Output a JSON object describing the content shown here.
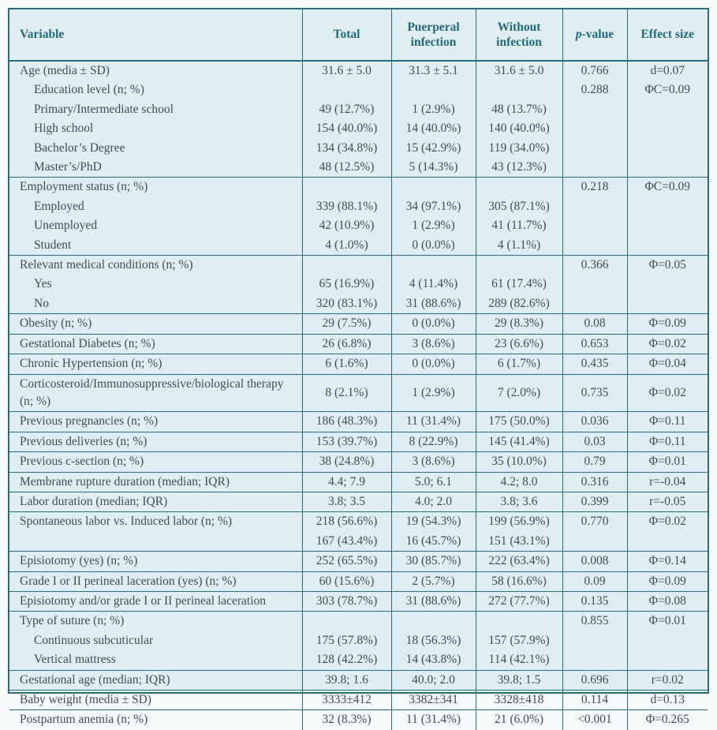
{
  "colors": {
    "frame_border": "#276e7e",
    "header_text": "#1f6b7c",
    "body_text": "#3f4e55",
    "table_background": "#e1eef1",
    "page_background": "#f7fafa"
  },
  "table": {
    "columns": {
      "variable": "Variable",
      "total": "Total",
      "puerperal": "Puerperal infection",
      "without": "Without infection",
      "p_value_italic": "p",
      "p_value_rest": "-value",
      "effect": "Effect size"
    },
    "rows": [
      {
        "label": "Age (media ± SD)",
        "indent": 0,
        "group_start": false,
        "total": "31.6 ± 5.0",
        "puerperal": "31.3 ± 5.1",
        "without": "31.6 ± 5.0",
        "p": "0.766",
        "effect": "d=0.07"
      },
      {
        "label": "Education level (n; %)",
        "indent": 1,
        "group_start": false,
        "total": "",
        "puerperal": "",
        "without": "",
        "p": "0.288",
        "effect": "ΦC=0.09"
      },
      {
        "label": "Primary/Intermediate school",
        "indent": 1,
        "group_start": false,
        "total": "49 (12.7%)",
        "puerperal": "1 (2.9%)",
        "without": "48 (13.7%)",
        "p": "",
        "effect": ""
      },
      {
        "label": "High school",
        "indent": 1,
        "group_start": false,
        "total": "154 (40.0%)",
        "puerperal": "14 (40.0%)",
        "without": "140 (40.0%)",
        "p": "",
        "effect": ""
      },
      {
        "label": "Bachelor’s Degree",
        "indent": 1,
        "group_start": false,
        "total": "134 (34.8%)",
        "puerperal": "15 (42.9%)",
        "without": "119 (34.0%)",
        "p": "",
        "effect": ""
      },
      {
        "label": "Master’s/PhD",
        "indent": 1,
        "group_start": false,
        "total": "48 (12.5%)",
        "puerperal": "5 (14.3%)",
        "without": "43 (12.3%)",
        "p": "",
        "effect": ""
      },
      {
        "label": "Employment status (n; %)",
        "indent": 0,
        "group_start": true,
        "total": "",
        "puerperal": "",
        "without": "",
        "p": "0.218",
        "effect": "ΦC=0.09"
      },
      {
        "label": "Employed",
        "indent": 1,
        "group_start": false,
        "total": "339 (88.1%)",
        "puerperal": "34 (97.1%)",
        "without": "305 (87.1%)",
        "p": "",
        "effect": ""
      },
      {
        "label": "Unemployed",
        "indent": 1,
        "group_start": false,
        "total": "42 (10.9%)",
        "puerperal": "1 (2.9%)",
        "without": "41 (11.7%)",
        "p": "",
        "effect": ""
      },
      {
        "label": "Student",
        "indent": 1,
        "group_start": false,
        "total": "4 (1.0%)",
        "puerperal": "0 (0.0%)",
        "without": "4 (1.1%)",
        "p": "",
        "effect": ""
      },
      {
        "label": "Relevant medical conditions (n; %)",
        "indent": 0,
        "group_start": true,
        "total": "",
        "puerperal": "",
        "without": "",
        "p": "0.366",
        "effect": "Φ=0.05"
      },
      {
        "label": "Yes",
        "indent": 1,
        "group_start": false,
        "total": "65 (16.9%)",
        "puerperal": "4 (11.4%)",
        "without": "61 (17.4%)",
        "p": "",
        "effect": ""
      },
      {
        "label": "No",
        "indent": 1,
        "group_start": false,
        "total": "320 (83.1%)",
        "puerperal": "31 (88.6%)",
        "without": "289 (82.6%)",
        "p": "",
        "effect": ""
      },
      {
        "label": "Obesity (n; %)",
        "indent": 0,
        "group_start": true,
        "total": "29 (7.5%)",
        "puerperal": "0 (0.0%)",
        "without": "29 (8.3%)",
        "p": "0.08",
        "effect": "Φ=0.09"
      },
      {
        "label": "Gestational Diabetes (n; %)",
        "indent": 0,
        "group_start": true,
        "total": "26 (6.8%)",
        "puerperal": "3 (8.6%)",
        "without": "23 (6.6%)",
        "p": "0.653",
        "effect": "Φ=0.02"
      },
      {
        "label": "Chronic Hypertension (n; %)",
        "indent": 0,
        "group_start": true,
        "total": "6 (1.6%)",
        "puerperal": "0 (0.0%)",
        "without": "6 (1.7%)",
        "p": "0.435",
        "effect": "Φ=0.04"
      },
      {
        "label": "Corticosteroid/Immunosuppressive/biological therapy (n; %)",
        "indent": 0,
        "group_start": true,
        "total": "8 (2.1%)",
        "puerperal": "1 (2.9%)",
        "without": "7 (2.0%)",
        "p": "0.735",
        "effect": "Φ=0.02"
      },
      {
        "label": "Previous pregnancies (n; %)",
        "indent": 0,
        "group_start": true,
        "total": "186 (48.3%)",
        "puerperal": "11 (31.4%)",
        "without": "175 (50.0%)",
        "p": "0.036",
        "effect": "Φ=0.11"
      },
      {
        "label": "Previous deliveries (n; %)",
        "indent": 0,
        "group_start": true,
        "total": "153 (39.7%)",
        "puerperal": "8 (22.9%)",
        "without": "145 (41.4%)",
        "p": "0.03",
        "effect": "Φ=0.11"
      },
      {
        "label": "Previous c-section (n; %)",
        "indent": 0,
        "group_start": true,
        "total": "38 (24.8%)",
        "puerperal": "3 (8.6%)",
        "without": "35 (10.0%)",
        "p": "0.79",
        "effect": "Φ=0.01"
      },
      {
        "label": "Membrane rupture duration (median; IQR)",
        "indent": 0,
        "group_start": true,
        "total": "4.4; 7.9",
        "puerperal": "5.0; 6.1",
        "without": "4.2; 8.0",
        "p": "0.316",
        "effect": "r=-0.04"
      },
      {
        "label": "Labor duration (median; IQR)",
        "indent": 0,
        "group_start": true,
        "total": "3.8; 3.5",
        "puerperal": "4.0; 2.0",
        "without": "3.8; 3.6",
        "p": "0.399",
        "effect": "r=-0.05"
      },
      {
        "label": "Spontaneous labor vs. Induced labor (n; %)",
        "indent": 0,
        "group_start": true,
        "total": "218 (56.6%)",
        "puerperal": "19 (54.3%)",
        "without": "199 (56.9%)",
        "p": "0.770",
        "effect": "Φ=0.02"
      },
      {
        "label": "",
        "indent": 0,
        "group_start": false,
        "total": "167 (43.4%)",
        "puerperal": "16 (45.7%)",
        "without": "151 (43.1%)",
        "p": "",
        "effect": ""
      },
      {
        "label": "Episiotomy (yes) (n; %)",
        "indent": 0,
        "group_start": true,
        "total": "252 (65.5%)",
        "puerperal": "30 (85.7%)",
        "without": "222 (63.4%)",
        "p": "0.008",
        "effect": "Φ=0.14"
      },
      {
        "label": "Grade I or II perineal laceration (yes) (n; %)",
        "indent": 0,
        "group_start": true,
        "total": "60 (15.6%)",
        "puerperal": "2 (5.7%)",
        "without": "58 (16.6%)",
        "p": "0.09",
        "effect": "Φ=0.09"
      },
      {
        "label": "Episiotomy and/or grade I or II perineal laceration",
        "indent": 0,
        "group_start": true,
        "total": "303 (78.7%)",
        "puerperal": "31 (88.6%)",
        "without": "272 (77.7%)",
        "p": "0.135",
        "effect": "Φ=0.08"
      },
      {
        "label": "Type of suture (n; %)",
        "indent": 0,
        "group_start": true,
        "total": "",
        "puerperal": "",
        "without": "",
        "p": "0.855",
        "effect": "Φ=0.01"
      },
      {
        "label": "Continuous subcuticular",
        "indent": 1,
        "group_start": false,
        "total": "175 (57.8%)",
        "puerperal": "18 (56.3%)",
        "without": "157 (57.9%)",
        "p": "",
        "effect": ""
      },
      {
        "label": "Vertical mattress",
        "indent": 1,
        "group_start": false,
        "total": "128 (42.2%)",
        "puerperal": "14 (43.8%)",
        "without": "114 (42.1%)",
        "p": "",
        "effect": ""
      },
      {
        "label": "Gestational age (median; IQR)",
        "indent": 0,
        "group_start": true,
        "total": "39.8; 1.6",
        "puerperal": "40.0; 2.0",
        "without": "39.8; 1.5",
        "p": "0.696",
        "effect": "r=0.02"
      },
      {
        "label": "Baby weight (media ± SD)",
        "indent": 0,
        "group_start": true,
        "total": "3333±412",
        "puerperal": "3382±341",
        "without": "3328±418",
        "p": "0.114",
        "effect": "d=0.13"
      },
      {
        "label": "Postpartum anemia (n; %)",
        "indent": 0,
        "group_start": true,
        "total": "32 (8.3%)",
        "puerperal": "11 (31.4%)",
        "without": "21 (6.0%)",
        "p": "<0.001",
        "effect": "Φ=0.265"
      }
    ]
  }
}
